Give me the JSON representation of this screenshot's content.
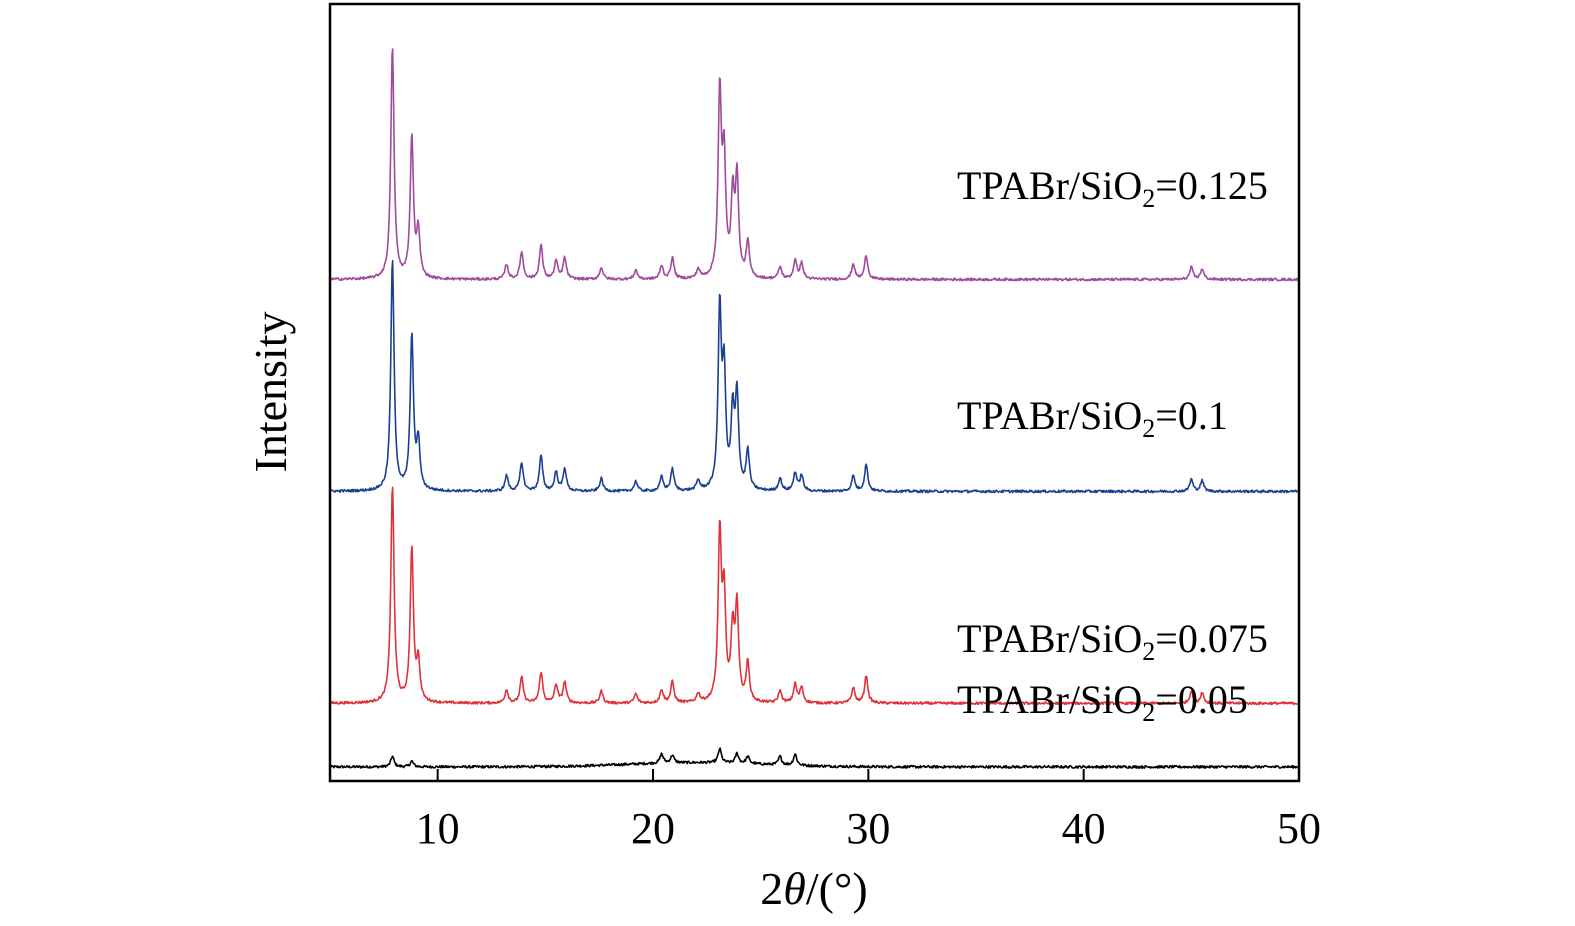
{
  "chart_data": {
    "type": "line",
    "title": "",
    "xlabel": {
      "prefix": "2",
      "italic": "θ",
      "suffix": "/(°)"
    },
    "ylabel": "Intensity",
    "xlim": [
      5,
      50
    ],
    "xticks": [
      10,
      20,
      30,
      40,
      50
    ],
    "y_ticks_shown": false,
    "grid": false,
    "legend": "none (labels placed beside each curve)",
    "common_peaks_2theta": [
      7.9,
      8.8,
      9.1,
      13.2,
      13.9,
      14.8,
      15.5,
      15.9,
      17.6,
      19.2,
      20.4,
      20.9,
      22.1,
      23.1,
      23.3,
      23.7,
      23.9,
      24.4,
      25.9,
      26.6,
      26.9,
      29.3,
      29.9,
      45.0,
      45.5
    ],
    "series": [
      {
        "name": "TPABr/SiO2=0.05",
        "label": {
          "base": "TPABr/SiO",
          "sub": "2",
          "value": "=0.05"
        },
        "color": "#000000",
        "baseline": 2.0,
        "peaks": [
          [
            7.9,
            1.5
          ],
          [
            8.8,
            0.8
          ],
          [
            20.4,
            1.3
          ],
          [
            20.9,
            1.1
          ],
          [
            23.1,
            2.0
          ],
          [
            23.9,
            1.4
          ],
          [
            24.4,
            1.0
          ],
          [
            25.9,
            1.2
          ],
          [
            26.6,
            1.6
          ]
        ]
      },
      {
        "name": "TPABr/SiO2=0.075",
        "label": {
          "base": "TPABr/SiO",
          "sub": "2",
          "value": "=0.075"
        },
        "color": "#e0313a",
        "baseline": 11.0,
        "peaks": [
          [
            7.9,
            30.8
          ],
          [
            8.8,
            21.7
          ],
          [
            9.1,
            5.5
          ],
          [
            13.2,
            1.9
          ],
          [
            13.9,
            3.6
          ],
          [
            14.8,
            4.4
          ],
          [
            15.5,
            2.6
          ],
          [
            15.9,
            3.0
          ],
          [
            17.6,
            1.7
          ],
          [
            19.2,
            1.3
          ],
          [
            20.4,
            1.9
          ],
          [
            20.9,
            3.0
          ],
          [
            22.1,
            1.3
          ],
          [
            23.1,
            23.4
          ],
          [
            23.3,
            14.2
          ],
          [
            23.7,
            9.8
          ],
          [
            23.9,
            13.1
          ],
          [
            24.4,
            5.5
          ],
          [
            25.9,
            1.7
          ],
          [
            26.6,
            2.6
          ],
          [
            26.9,
            2.2
          ],
          [
            29.3,
            2.2
          ],
          [
            29.9,
            3.9
          ],
          [
            45.0,
            1.7
          ],
          [
            45.5,
            1.5
          ]
        ]
      },
      {
        "name": "TPABr/SiO2=0.1",
        "label": {
          "base": "TPABr/SiO",
          "sub": "2",
          "value": "=0.1"
        },
        "color": "#1c3f94",
        "baseline": 41.0,
        "peaks": [
          [
            7.9,
            32.7
          ],
          [
            8.8,
            21.9
          ],
          [
            9.1,
            6.7
          ],
          [
            13.2,
            2.2
          ],
          [
            13.9,
            4.0
          ],
          [
            14.8,
            5.0
          ],
          [
            15.5,
            2.7
          ],
          [
            15.9,
            3.2
          ],
          [
            17.6,
            1.8
          ],
          [
            19.2,
            1.4
          ],
          [
            20.4,
            2.0
          ],
          [
            20.9,
            3.1
          ],
          [
            22.1,
            1.4
          ],
          [
            23.1,
            25.2
          ],
          [
            23.3,
            15.7
          ],
          [
            23.7,
            10.4
          ],
          [
            23.9,
            13.1
          ],
          [
            24.4,
            5.5
          ],
          [
            25.9,
            1.8
          ],
          [
            26.6,
            2.6
          ],
          [
            26.9,
            2.2
          ],
          [
            29.3,
            2.2
          ],
          [
            29.9,
            3.8
          ],
          [
            45.0,
            1.7
          ],
          [
            45.5,
            1.5
          ]
        ]
      },
      {
        "name": "TPABr/SiO2=0.125",
        "label": {
          "base": "TPABr/SiO",
          "sub": "2",
          "value": "=0.125"
        },
        "color": "#a04a9e",
        "baseline": 71.0,
        "peaks": [
          [
            7.9,
            32.9
          ],
          [
            8.8,
            20.0
          ],
          [
            9.1,
            6.5
          ],
          [
            13.2,
            2.1
          ],
          [
            13.9,
            3.9
          ],
          [
            14.8,
            4.8
          ],
          [
            15.5,
            2.6
          ],
          [
            15.9,
            3.0
          ],
          [
            17.6,
            1.7
          ],
          [
            19.2,
            1.3
          ],
          [
            20.4,
            1.9
          ],
          [
            20.9,
            3.0
          ],
          [
            22.1,
            1.3
          ],
          [
            23.1,
            25.8
          ],
          [
            23.3,
            16.0
          ],
          [
            23.7,
            11.0
          ],
          [
            23.9,
            13.8
          ],
          [
            24.4,
            5.0
          ],
          [
            25.9,
            1.7
          ],
          [
            26.6,
            2.6
          ],
          [
            26.9,
            2.2
          ],
          [
            29.3,
            2.2
          ],
          [
            29.9,
            3.4
          ],
          [
            45.0,
            1.7
          ],
          [
            45.5,
            1.5
          ]
        ]
      }
    ]
  }
}
